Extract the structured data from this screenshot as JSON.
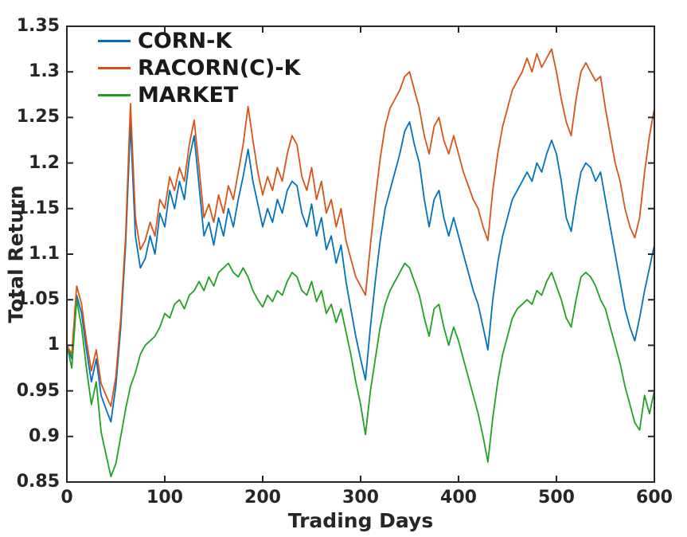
{
  "chart_data": {
    "type": "line",
    "title": "",
    "xlabel": "Trading Days",
    "ylabel": "Total Return",
    "xlim": [
      0,
      600
    ],
    "ylim": [
      0.85,
      1.35
    ],
    "xticks": {
      "values": [
        0,
        100,
        200,
        300,
        400,
        500,
        600
      ],
      "labels": [
        "0",
        "100",
        "200",
        "300",
        "400",
        "500",
        "600"
      ]
    },
    "yticks": {
      "values": [
        0.85,
        0.9,
        0.95,
        1.0,
        1.05,
        1.1,
        1.15,
        1.2,
        1.25,
        1.3,
        1.35
      ],
      "labels": [
        "0.85",
        "0.9",
        "0.95",
        "1",
        "1.05",
        "1.1",
        "1.15",
        "1.2",
        "1.25",
        "1.3",
        "1.35"
      ]
    },
    "grid": false,
    "box": true,
    "tick_direction": "in",
    "legend_position": "top-left",
    "axis_color": "#262626",
    "background_color": "#ffffff",
    "x": [
      0,
      5,
      10,
      15,
      20,
      25,
      30,
      35,
      40,
      45,
      50,
      55,
      60,
      65,
      70,
      75,
      80,
      85,
      90,
      95,
      100,
      105,
      110,
      115,
      120,
      125,
      130,
      135,
      140,
      145,
      150,
      155,
      160,
      165,
      170,
      175,
      180,
      185,
      190,
      195,
      200,
      205,
      210,
      215,
      220,
      225,
      230,
      235,
      240,
      245,
      250,
      255,
      260,
      265,
      270,
      275,
      280,
      285,
      290,
      295,
      300,
      305,
      310,
      315,
      320,
      325,
      330,
      335,
      340,
      345,
      350,
      355,
      360,
      365,
      370,
      375,
      380,
      385,
      390,
      395,
      400,
      405,
      410,
      415,
      420,
      425,
      430,
      435,
      440,
      445,
      450,
      455,
      460,
      465,
      470,
      475,
      480,
      485,
      490,
      495,
      500,
      505,
      510,
      515,
      520,
      525,
      530,
      535,
      540,
      545,
      550,
      555,
      560,
      565,
      570,
      575,
      580,
      585,
      590,
      595,
      600
    ],
    "series": [
      {
        "name": "CORN-K",
        "color": "#0072BD",
        "values": [
          1.0,
          0.985,
          1.055,
          1.035,
          0.995,
          0.96,
          0.985,
          0.945,
          0.93,
          0.916,
          0.955,
          1.02,
          1.11,
          1.243,
          1.12,
          1.085,
          1.095,
          1.12,
          1.1,
          1.145,
          1.13,
          1.17,
          1.15,
          1.18,
          1.16,
          1.205,
          1.23,
          1.175,
          1.12,
          1.135,
          1.11,
          1.14,
          1.12,
          1.15,
          1.13,
          1.16,
          1.185,
          1.215,
          1.18,
          1.155,
          1.13,
          1.15,
          1.135,
          1.16,
          1.145,
          1.17,
          1.18,
          1.175,
          1.145,
          1.13,
          1.155,
          1.12,
          1.14,
          1.105,
          1.12,
          1.09,
          1.11,
          1.07,
          1.04,
          1.01,
          0.985,
          0.962,
          1.02,
          1.07,
          1.115,
          1.15,
          1.17,
          1.19,
          1.21,
          1.235,
          1.245,
          1.22,
          1.2,
          1.16,
          1.13,
          1.16,
          1.17,
          1.14,
          1.12,
          1.14,
          1.12,
          1.1,
          1.08,
          1.06,
          1.045,
          1.02,
          0.995,
          1.05,
          1.09,
          1.12,
          1.14,
          1.16,
          1.17,
          1.18,
          1.19,
          1.18,
          1.2,
          1.19,
          1.21,
          1.225,
          1.21,
          1.18,
          1.14,
          1.125,
          1.16,
          1.19,
          1.2,
          1.195,
          1.18,
          1.19,
          1.16,
          1.13,
          1.1,
          1.07,
          1.04,
          1.02,
          1.005,
          1.03,
          1.06,
          1.085,
          1.11
        ]
      },
      {
        "name": "RACORN(C)-K",
        "color": "#D95319",
        "values": [
          1.0,
          0.99,
          1.065,
          1.045,
          1.005,
          0.972,
          0.995,
          0.958,
          0.945,
          0.933,
          0.965,
          1.03,
          1.12,
          1.265,
          1.14,
          1.105,
          1.115,
          1.135,
          1.12,
          1.16,
          1.15,
          1.185,
          1.17,
          1.195,
          1.18,
          1.22,
          1.247,
          1.195,
          1.14,
          1.155,
          1.135,
          1.165,
          1.145,
          1.175,
          1.16,
          1.19,
          1.22,
          1.262,
          1.225,
          1.19,
          1.165,
          1.185,
          1.17,
          1.195,
          1.18,
          1.21,
          1.23,
          1.22,
          1.185,
          1.17,
          1.195,
          1.16,
          1.18,
          1.145,
          1.16,
          1.13,
          1.15,
          1.115,
          1.095,
          1.075,
          1.065,
          1.055,
          1.11,
          1.16,
          1.205,
          1.24,
          1.26,
          1.27,
          1.28,
          1.295,
          1.3,
          1.28,
          1.26,
          1.23,
          1.21,
          1.24,
          1.25,
          1.225,
          1.21,
          1.23,
          1.21,
          1.19,
          1.175,
          1.16,
          1.15,
          1.13,
          1.115,
          1.17,
          1.21,
          1.24,
          1.26,
          1.28,
          1.29,
          1.3,
          1.315,
          1.3,
          1.32,
          1.305,
          1.315,
          1.325,
          1.3,
          1.27,
          1.245,
          1.23,
          1.27,
          1.3,
          1.31,
          1.3,
          1.29,
          1.295,
          1.26,
          1.23,
          1.2,
          1.18,
          1.15,
          1.13,
          1.118,
          1.14,
          1.19,
          1.23,
          1.26
        ]
      },
      {
        "name": "MARKET",
        "color": "#21A121",
        "values": [
          1.0,
          0.975,
          1.05,
          1.02,
          0.975,
          0.935,
          0.96,
          0.905,
          0.88,
          0.856,
          0.87,
          0.9,
          0.93,
          0.955,
          0.97,
          0.99,
          1.0,
          1.005,
          1.01,
          1.02,
          1.035,
          1.03,
          1.045,
          1.05,
          1.04,
          1.055,
          1.06,
          1.07,
          1.06,
          1.075,
          1.065,
          1.08,
          1.085,
          1.09,
          1.08,
          1.075,
          1.085,
          1.075,
          1.06,
          1.05,
          1.042,
          1.055,
          1.048,
          1.06,
          1.055,
          1.07,
          1.08,
          1.075,
          1.06,
          1.055,
          1.07,
          1.048,
          1.06,
          1.035,
          1.045,
          1.025,
          1.04,
          1.015,
          0.99,
          0.96,
          0.935,
          0.902,
          0.95,
          0.985,
          1.02,
          1.045,
          1.06,
          1.07,
          1.08,
          1.09,
          1.085,
          1.07,
          1.055,
          1.03,
          1.01,
          1.04,
          1.045,
          1.02,
          1.0,
          1.02,
          1.005,
          0.985,
          0.965,
          0.945,
          0.925,
          0.9,
          0.872,
          0.92,
          0.96,
          0.99,
          1.01,
          1.03,
          1.04,
          1.045,
          1.05,
          1.045,
          1.06,
          1.055,
          1.07,
          1.08,
          1.065,
          1.05,
          1.03,
          1.02,
          1.05,
          1.075,
          1.08,
          1.075,
          1.065,
          1.05,
          1.04,
          1.02,
          1.0,
          0.98,
          0.955,
          0.935,
          0.915,
          0.907,
          0.945,
          0.925,
          0.95
        ]
      }
    ]
  }
}
